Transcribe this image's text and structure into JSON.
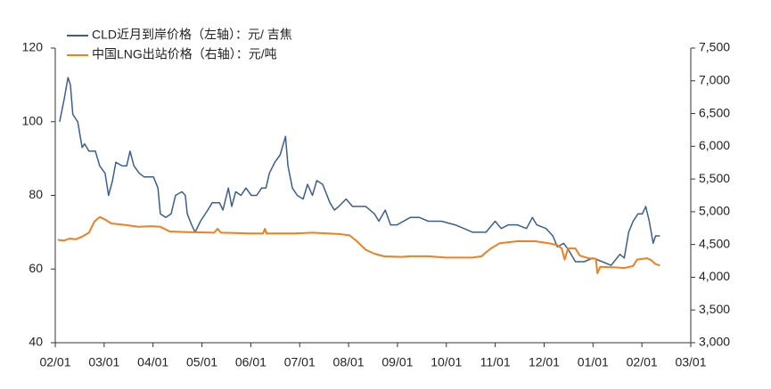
{
  "chart_data": {
    "type": "line",
    "series": [
      {
        "name": "CLD近月到岸价格（左轴）：元/ 吉焦",
        "color": "#3a5f8f",
        "x": [
          0.09,
          0.18,
          0.26,
          0.31,
          0.36,
          0.46,
          0.51,
          0.55,
          0.6,
          0.69,
          0.82,
          0.91,
          1.02,
          1.09,
          1.17,
          1.24,
          1.37,
          1.46,
          1.53,
          1.61,
          1.72,
          1.82,
          2.01,
          2.1,
          2.15,
          2.26,
          2.37,
          2.46,
          2.59,
          2.66,
          2.7,
          2.79,
          2.86,
          2.97,
          3.12,
          3.21,
          3.36,
          3.43,
          3.54,
          3.61,
          3.69,
          3.8,
          3.9,
          4.01,
          4.12,
          4.22,
          4.31,
          4.38,
          4.49,
          4.6,
          4.71,
          4.76,
          4.85,
          4.95,
          5.07,
          5.16,
          5.26,
          5.35,
          5.47,
          5.62,
          5.71,
          5.8,
          5.95,
          6.08,
          6.35,
          6.53,
          6.62,
          6.75,
          6.86,
          6.99,
          7.26,
          7.45,
          7.63,
          7.9,
          8.18,
          8.36,
          8.54,
          8.81,
          9.0,
          9.12,
          9.27,
          9.45,
          9.64,
          9.76,
          9.85,
          10.04,
          10.18,
          10.27,
          10.4,
          10.51,
          10.64,
          10.82,
          11.0,
          11.19,
          11.37,
          11.55,
          11.64,
          11.73,
          11.82,
          11.92,
          12.01,
          12.08,
          12.15,
          12.23,
          12.28,
          12.37
        ],
        "values": [
          100,
          106,
          112,
          110,
          102,
          100,
          96,
          93,
          94,
          92,
          92,
          88,
          86,
          80,
          84,
          89,
          88,
          88,
          92,
          88,
          86,
          85,
          85,
          82,
          75,
          74,
          75,
          80,
          81,
          80,
          75,
          72,
          70,
          73,
          76,
          78,
          78,
          76,
          82,
          77,
          81,
          80,
          82,
          80,
          80,
          82,
          82,
          86,
          89,
          91,
          96,
          88,
          82,
          80,
          79,
          83,
          80,
          84,
          83,
          78,
          76,
          77,
          79,
          77,
          77,
          75,
          73,
          76,
          72,
          72,
          74,
          74,
          73,
          73,
          72,
          71,
          70,
          70,
          73,
          71,
          72,
          72,
          71,
          74,
          72,
          71,
          69,
          66,
          67,
          65,
          62,
          62,
          63,
          62,
          61,
          64,
          63,
          70,
          73,
          75,
          75,
          77,
          73,
          67,
          69,
          69
        ]
      },
      {
        "name": "中国LNG出站价格（右轴）：元/吨",
        "color": "#f07f1e",
        "axis": "y2",
        "x": [
          0.05,
          0.18,
          0.29,
          0.42,
          0.55,
          0.69,
          0.8,
          0.91,
          1.02,
          1.15,
          1.42,
          1.7,
          1.97,
          2.15,
          2.34,
          2.7,
          3.25,
          3.32,
          3.39,
          3.98,
          4.25,
          4.29,
          4.32,
          4.89,
          5.26,
          5.8,
          6.02,
          6.17,
          6.35,
          6.53,
          6.72,
          7.08,
          7.26,
          7.63,
          7.99,
          8.54,
          8.72,
          8.81,
          8.91,
          9.09,
          9.45,
          9.82,
          10.09,
          10.27,
          10.36,
          10.42,
          10.49,
          10.64,
          10.73,
          10.91,
          11.06,
          11.09,
          11.15,
          11.46,
          11.64,
          11.82,
          11.9,
          12.1,
          12.19,
          12.28,
          12.37
        ],
        "values": [
          4570,
          4560,
          4590,
          4580,
          4620,
          4680,
          4850,
          4920,
          4880,
          4820,
          4800,
          4770,
          4780,
          4770,
          4700,
          4690,
          4680,
          4740,
          4680,
          4670,
          4670,
          4740,
          4670,
          4670,
          4680,
          4660,
          4640,
          4550,
          4420,
          4360,
          4320,
          4310,
          4320,
          4320,
          4300,
          4300,
          4320,
          4380,
          4440,
          4520,
          4550,
          4550,
          4520,
          4490,
          4440,
          4270,
          4440,
          4440,
          4330,
          4290,
          4280,
          4060,
          4160,
          4150,
          4140,
          4170,
          4270,
          4290,
          4260,
          4200,
          4180
        ]
      }
    ],
    "xlim": [
      0,
      13
    ],
    "xticks": [
      {
        "value": 0,
        "label": "02/01"
      },
      {
        "value": 1,
        "label": "03/01"
      },
      {
        "value": 2,
        "label": "04/01"
      },
      {
        "value": 3,
        "label": "05/01"
      },
      {
        "value": 4,
        "label": "06/01"
      },
      {
        "value": 5,
        "label": "07/01"
      },
      {
        "value": 6,
        "label": "08/01"
      },
      {
        "value": 7,
        "label": "09/01"
      },
      {
        "value": 8,
        "label": "10/01"
      },
      {
        "value": 9,
        "label": "11/01"
      },
      {
        "value": 10,
        "label": "12/01"
      },
      {
        "value": 11,
        "label": "01/01"
      },
      {
        "value": 12,
        "label": "02/01"
      },
      {
        "value": 13,
        "label": "03/01"
      }
    ],
    "ylim": [
      40,
      120
    ],
    "yticks": [
      40,
      60,
      80,
      100,
      120
    ],
    "y2lim": [
      3000,
      7500
    ],
    "y2ticks": [
      {
        "value": 3000,
        "label": "3,000"
      },
      {
        "value": 3500,
        "label": "3,500"
      },
      {
        "value": 4000,
        "label": "4,000"
      },
      {
        "value": 4500,
        "label": "4,500"
      },
      {
        "value": 5000,
        "label": "5,000"
      },
      {
        "value": 5500,
        "label": "5,500"
      },
      {
        "value": 6000,
        "label": "6,000"
      },
      {
        "value": 6500,
        "label": "6,500"
      },
      {
        "value": 7000,
        "label": "7,000"
      },
      {
        "value": 7500,
        "label": "7,500"
      }
    ],
    "legend": "top-left"
  }
}
